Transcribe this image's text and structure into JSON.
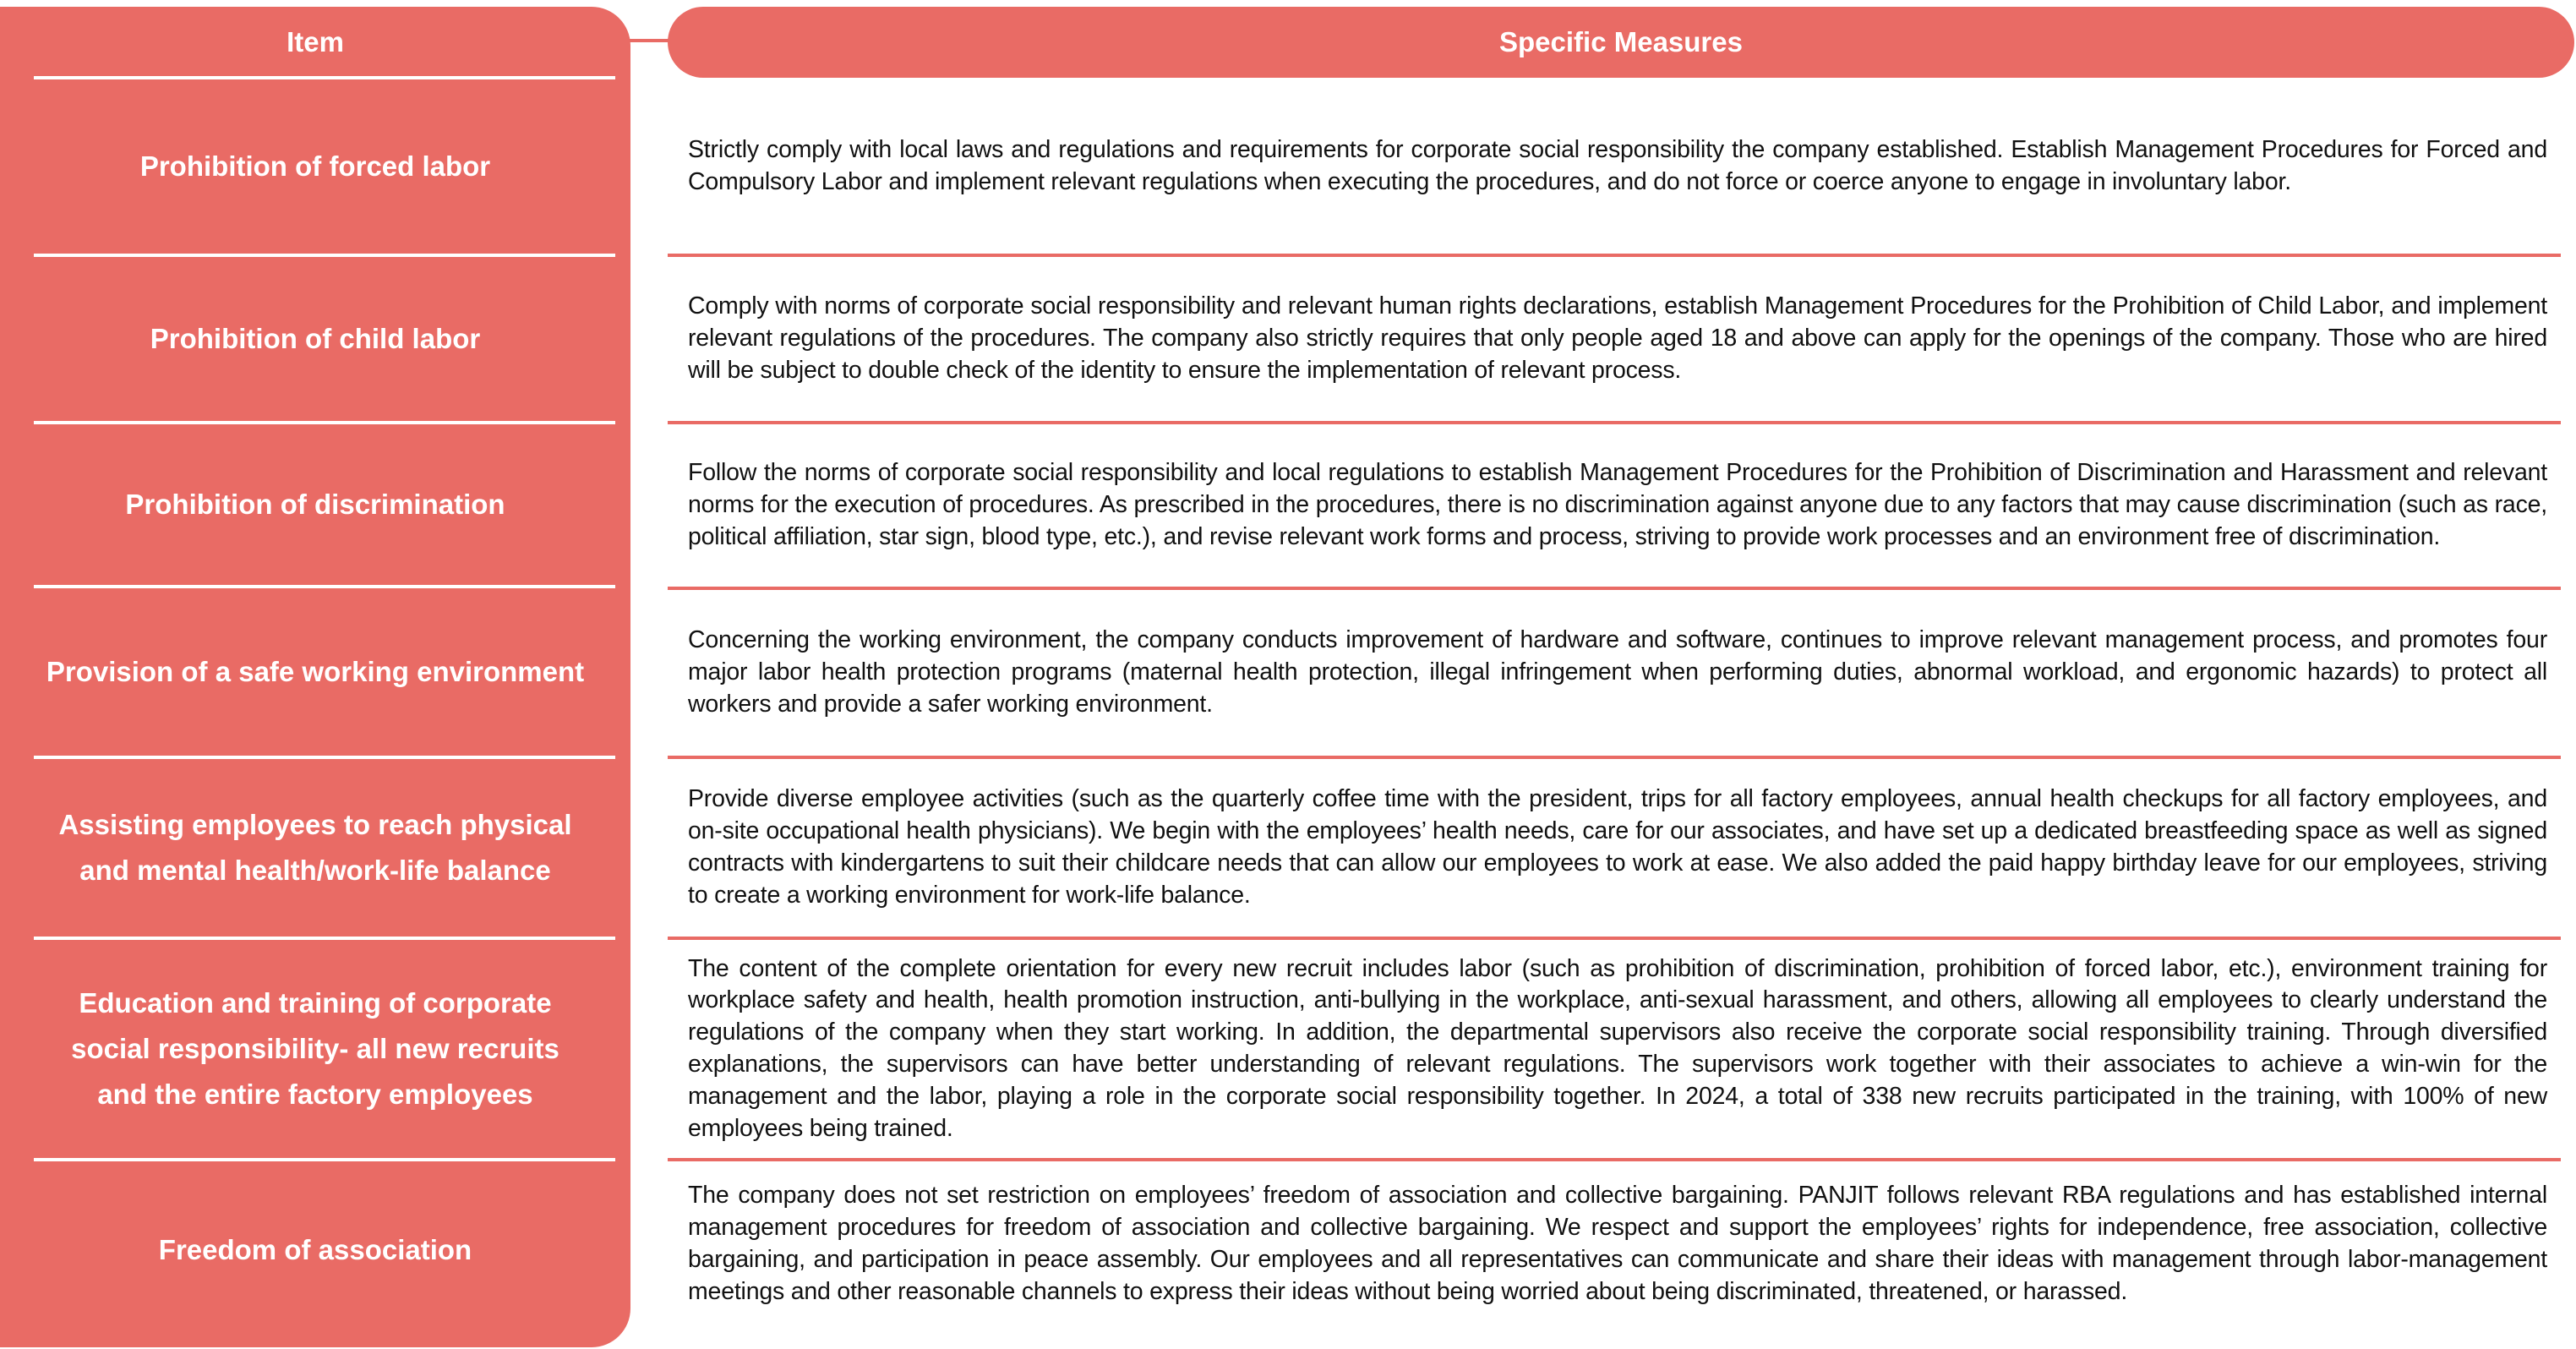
{
  "header": {
    "item": "Item",
    "measures": "Specific Measures"
  },
  "colors": {
    "accent": "#E96B65",
    "text": "#111111",
    "background": "#FFFFFF"
  },
  "rows": [
    {
      "item": "Prohibition of forced labor",
      "measure": "Strictly comply with local laws and regulations and requirements for corporate social responsibility the company established. Establish Management Procedures for Forced and Compulsory Labor and implement relevant regulations when executing the procedures, and do not force or coerce anyone to engage in involuntary labor."
    },
    {
      "item": "Prohibition of child labor",
      "measure": "Comply with norms of corporate social responsibility and relevant human rights declarations, establish Management Procedures for the Prohibition of Child Labor, and implement relevant regulations of the procedures. The company also strictly requires that only people aged 18 and above can apply for the openings of the company. Those who are hired will be subject to double check of the identity to ensure the implementation of relevant process."
    },
    {
      "item": "Prohibition of discrimination",
      "measure": "Follow the norms of corporate social responsibility and local regulations to establish Management Procedures for the Prohibition of Discrimination and Harassment and relevant norms for the execution of procedures. As prescribed in the procedures, there is no discrimination against anyone due to any factors that may cause discrimination (such as race, political affiliation, star sign, blood type, etc.), and revise relevant work forms and process, striving to provide work processes and an environment free of discrimination."
    },
    {
      "item": "Provision of a safe working environment",
      "measure": "Concerning the working environment, the company conducts improvement of hardware and software, continues to improve relevant management process, and promotes four major labor health protection programs (maternal health protection, illegal infringement when performing duties, abnormal workload, and ergonomic hazards) to protect all workers and provide a safer working environment."
    },
    {
      "item": "Assisting employees to reach physical\nand mental health/work-life balance",
      "measure": "Provide diverse employee activities (such as the quarterly coffee time with the president, trips for all factory employees, annual health checkups for all factory employees, and on-site occupational health physicians). We begin with the employees’ health needs, care for our associates, and have set up a dedicated breastfeeding space as well as signed contracts with kindergartens to suit their childcare needs that can allow our employees to work at ease. We also added the paid happy birthday leave for our employees, striving to create a working environment for work-life balance."
    },
    {
      "item": "Education and training of corporate\nsocial responsibility- all new recruits\nand the entire factory employees",
      "measure": "The content of the complete orientation for every new recruit includes labor (such as prohibition of discrimination, prohibition of forced labor, etc.), environment training for workplace safety and health, health promotion instruction, anti-bullying in the workplace, anti-sexual harassment, and others, allowing all employees to clearly understand the regulations of the company when they start working. In addition, the departmental supervisors also receive the corporate social responsibility training. Through diversified explanations, the supervisors can have better understanding of relevant regulations. The supervisors work together with their associates to achieve a win-win for the management and the labor, playing a role in the corporate social responsibility together. In 2024, a total of 338 new recruits participated in the training, with 100% of new employees being trained."
    },
    {
      "item": "Freedom of association",
      "measure": "The company does not set restriction on employees’ freedom of association and collective bargaining. PANJIT follows relevant RBA regulations and has established internal management procedures for freedom of association and collective bargaining. We respect and support the employees’ rights for independence, free association, collective bargaining, and participation in peace assembly. Our employees and all representatives can communicate and share their ideas with management through labor-management meetings and other reasonable channels to express their ideas without being worried about being discriminated, threatened, or harassed."
    }
  ]
}
